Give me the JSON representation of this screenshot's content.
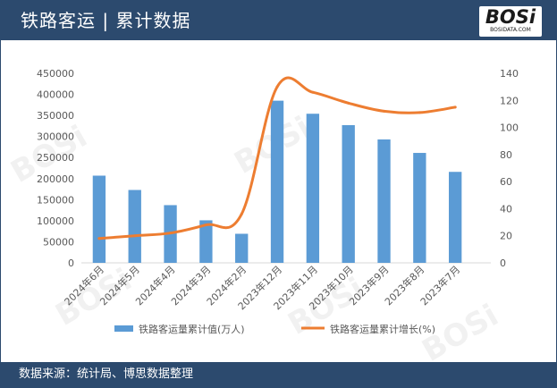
{
  "header": {
    "title": "铁路客运 | 累计数据"
  },
  "logo": {
    "main": "BOSi",
    "sub": "BOSIDATA.COM"
  },
  "footer": {
    "source": "数据来源：统计局、博思数据整理"
  },
  "colors": {
    "bar": "#5b9bd5",
    "line": "#ed7d31",
    "header_bg": "#2c4a6e"
  },
  "chart_data": {
    "type": "bar",
    "categories": [
      "2024年6月",
      "2024年5月",
      "2024年4月",
      "2024年3月",
      "2024年2月",
      "2023年12月",
      "2023年11月",
      "2023年10月",
      "2023年9月",
      "2023年8月",
      "2023年7月"
    ],
    "series": [
      {
        "name": "铁路客运量累计值(万人)",
        "type": "bar",
        "axis": "left",
        "values": [
          207000,
          173000,
          137000,
          101000,
          69000,
          385000,
          354000,
          327000,
          293000,
          261000,
          216000
        ]
      },
      {
        "name": "铁路客运量累计增长(%)",
        "type": "line",
        "axis": "right",
        "values": [
          18,
          20,
          22,
          28,
          36,
          130,
          126,
          118,
          112,
          111,
          115
        ]
      }
    ],
    "y_left": {
      "min": 0,
      "max": 450000,
      "step": 50000,
      "ticks": [
        "0",
        "50000",
        "100000",
        "150000",
        "200000",
        "250000",
        "300000",
        "350000",
        "400000",
        "450000"
      ]
    },
    "y_right": {
      "min": 0,
      "max": 140,
      "step": 20,
      "ticks": [
        "0",
        "20",
        "40",
        "60",
        "80",
        "100",
        "120",
        "140"
      ]
    },
    "grid": false,
    "legend_position": "bottom"
  }
}
